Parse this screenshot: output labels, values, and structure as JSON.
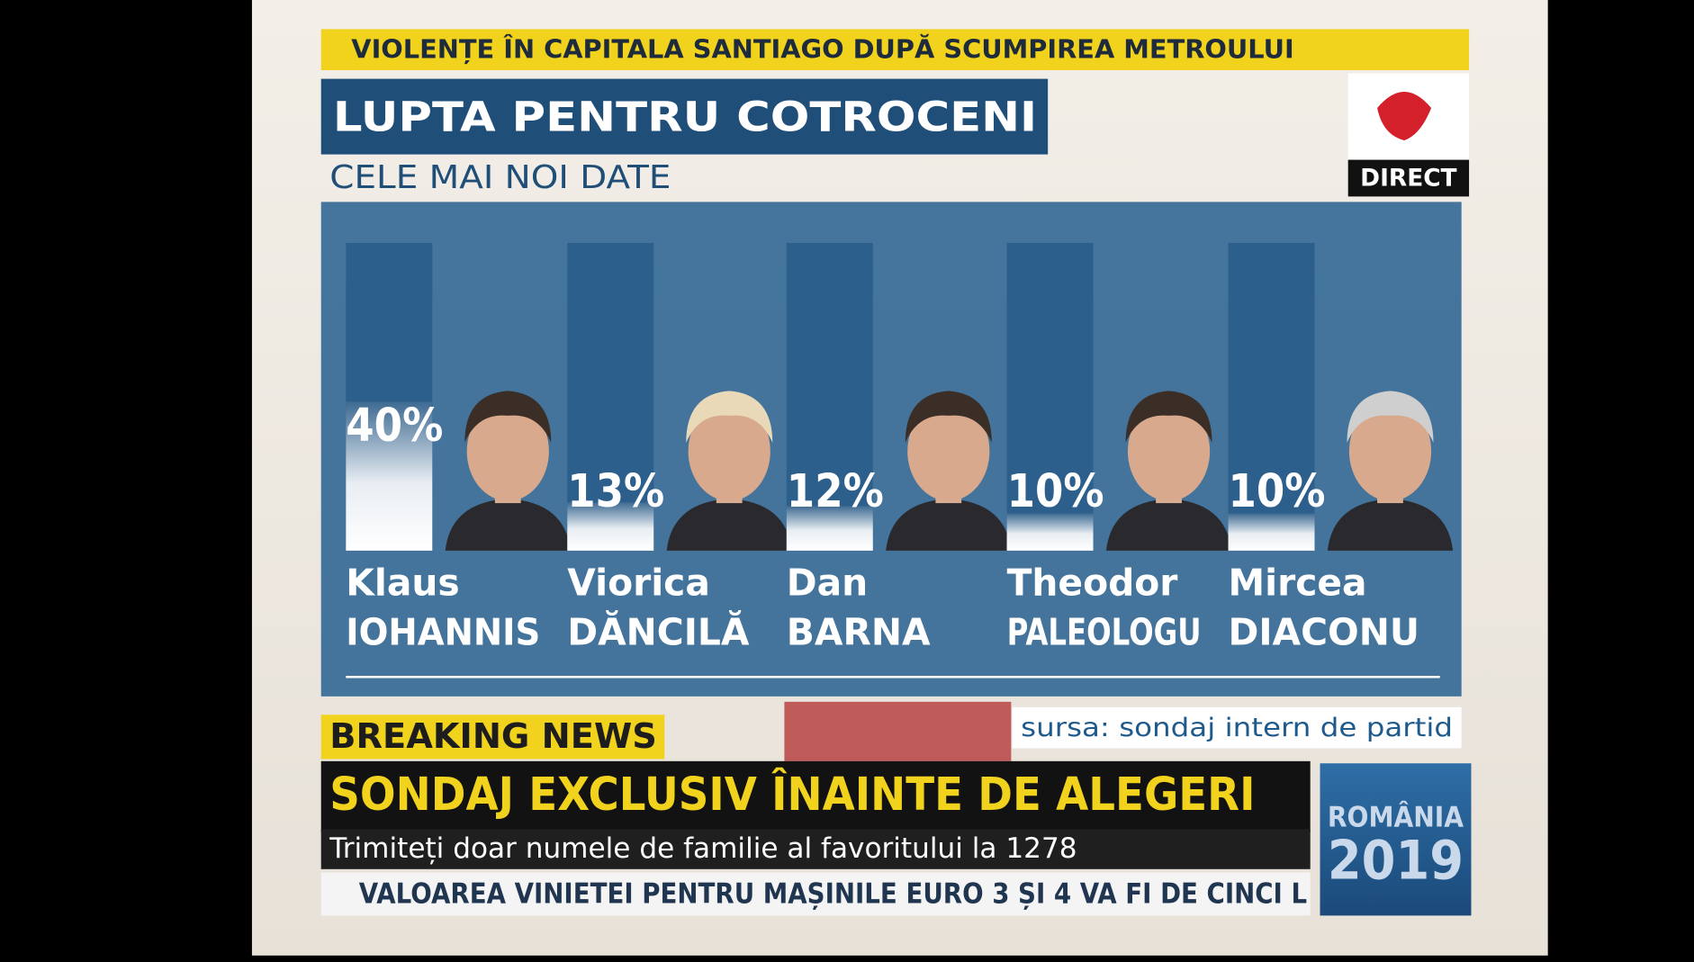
{
  "top_ticker": "VIOLENȚE ÎN CAPITALA SANTIAGO DUPĂ SCUMPIREA METROULUI",
  "logo": {
    "label": "DIRECT"
  },
  "chart_data": {
    "type": "bar",
    "title": "LUPTA PENTRU COTROCENI",
    "subtitle": "CELE MAI NOI DATE",
    "categories": [
      [
        "Klaus",
        "IOHANNIS"
      ],
      [
        "Viorica",
        "DĂNCILĂ"
      ],
      [
        "Dan",
        "BARNA"
      ],
      [
        "Theodor",
        "PALEOLOGU"
      ],
      [
        "Mircea",
        "DIACONU"
      ]
    ],
    "values": [
      40,
      13,
      12,
      10,
      10
    ],
    "value_labels": [
      "40%",
      "13%",
      "12%",
      "10%",
      "10%"
    ],
    "source": "sursa: sondaj intern de partid"
  },
  "lower_third": {
    "tag": "BREAKING NEWS",
    "headline": "SONDAJ EXCLUSIV ÎNAINTE DE ALEGERI",
    "subline": "Trimiteți doar numele de familie al favoritului la 1278",
    "ticker": "VALOAREA VINIETEI PENTRU MAȘINILE EURO 3 ȘI 4 VA FI DE CINCI L"
  },
  "badge": {
    "line1": "ROMÂNIA",
    "line2": "2019"
  }
}
